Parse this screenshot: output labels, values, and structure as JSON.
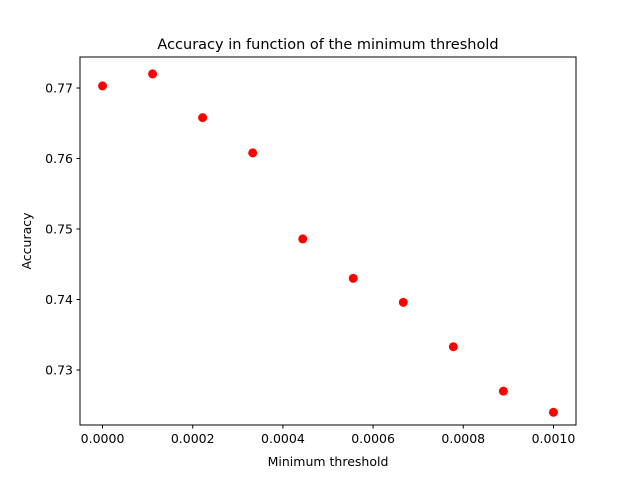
{
  "chart_data": {
    "type": "scatter",
    "title": "Accuracy in function of the minimum threshold",
    "xlabel": "Minimum threshold",
    "ylabel": "Accuracy",
    "xlim": [
      -5e-05,
      0.00105
    ],
    "ylim": [
      0.7222,
      0.7744
    ],
    "x_ticks": [
      0.0,
      0.0002,
      0.0004,
      0.0006,
      0.0008,
      0.001
    ],
    "x_tick_labels": [
      "0.0000",
      "0.0002",
      "0.0004",
      "0.0006",
      "0.0008",
      "0.0010"
    ],
    "y_ticks": [
      0.73,
      0.74,
      0.75,
      0.76,
      0.77
    ],
    "y_tick_labels": [
      "0.73",
      "0.74",
      "0.75",
      "0.76",
      "0.77"
    ],
    "grid": false,
    "marker_color": "#ff0000",
    "series": [
      {
        "x": [
          0.0,
          0.000111,
          0.000222,
          0.000333,
          0.000444,
          0.000556,
          0.000667,
          0.000778,
          0.000889,
          0.001
        ],
        "y": [
          0.7703,
          0.772,
          0.7658,
          0.7608,
          0.7486,
          0.743,
          0.7396,
          0.7333,
          0.727,
          0.724
        ]
      }
    ]
  }
}
